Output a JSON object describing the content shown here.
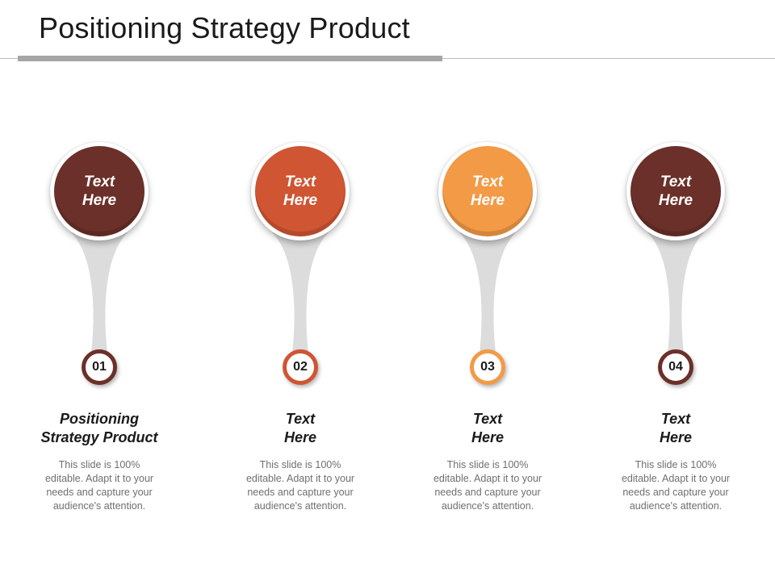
{
  "title": "Positioning Strategy Product",
  "items": [
    {
      "circle_line1": "Text",
      "circle_line2": "Here",
      "number": "01",
      "heading_line1": "Positioning",
      "heading_line2": "Strategy Product",
      "description": "This slide is 100% editable. Adapt it to your needs and capture your audience's attention.",
      "color": "#6b3029"
    },
    {
      "circle_line1": "Text",
      "circle_line2": "Here",
      "number": "02",
      "heading_line1": "Text",
      "heading_line2": "Here",
      "description": "This slide is 100% editable. Adapt it to your needs and capture your audience's attention.",
      "color": "#cf5533"
    },
    {
      "circle_line1": "Text",
      "circle_line2": "Here",
      "number": "03",
      "heading_line1": "Text",
      "heading_line2": "Here",
      "description": "This slide is 100% editable. Adapt it to your needs and capture your audience's attention.",
      "color": "#f29a46"
    },
    {
      "circle_line1": "Text",
      "circle_line2": "Here",
      "number": "04",
      "heading_line1": "Text",
      "heading_line2": "Here",
      "description": "This slide is 100% editable. Adapt it to your needs and capture your audience's attention.",
      "color": "#6b3029"
    }
  ]
}
